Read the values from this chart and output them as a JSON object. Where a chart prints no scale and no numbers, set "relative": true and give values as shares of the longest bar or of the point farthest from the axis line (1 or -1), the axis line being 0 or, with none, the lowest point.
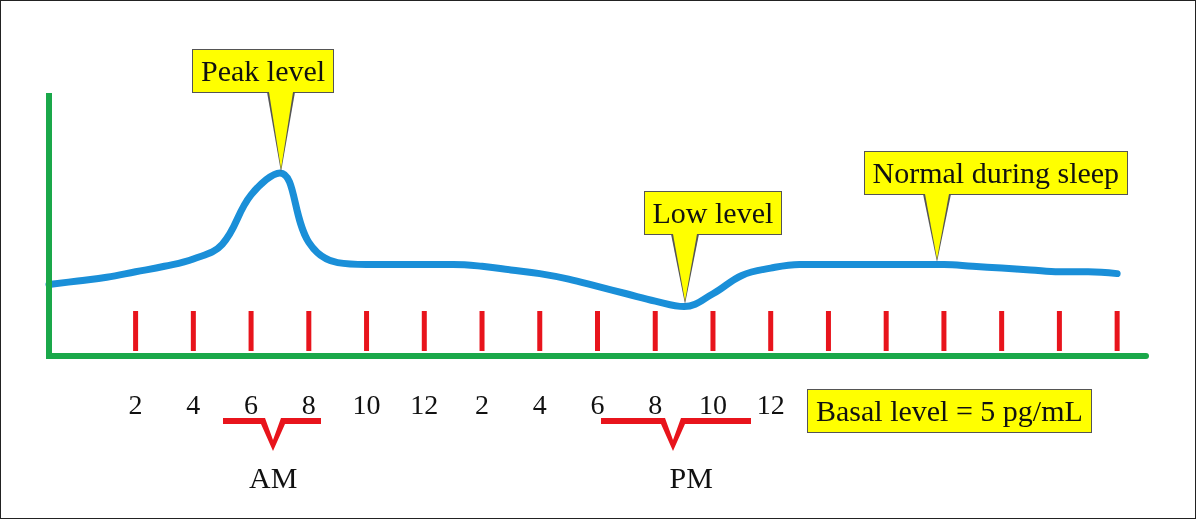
{
  "chart_data": {
    "type": "line",
    "relative": true,
    "grid": false,
    "marker": "none",
    "line_style": "solid",
    "categories": [
      null,
      null,
      null,
      "2",
      null,
      "4",
      null,
      "6",
      null,
      "8",
      null,
      "10",
      null,
      "12",
      null,
      "2",
      null,
      "4",
      null,
      "6",
      null,
      "8",
      null,
      "10",
      null,
      "12",
      null,
      null,
      null,
      null,
      null,
      null,
      null,
      null,
      null,
      null,
      null,
      null,
      null
    ],
    "series": [
      {
        "color": "#1a8fd8",
        "values": [
          0.39,
          0.41,
          0.43,
          0.46,
          0.49,
          0.53,
          0.61,
          0.88,
          1.0,
          0.62,
          0.51,
          0.5,
          0.5,
          0.5,
          0.5,
          0.49,
          0.47,
          0.45,
          0.42,
          0.38,
          0.34,
          0.3,
          0.27,
          0.34,
          0.44,
          0.48,
          0.5,
          0.5,
          0.5,
          0.5,
          0.5,
          0.5,
          0.49,
          0.48,
          0.47,
          0.46,
          0.46,
          0.45,
          null
        ]
      }
    ],
    "annotations": [
      "Peak level",
      "Low level",
      "Normal during sleep",
      "Basal level = 5 pg/mL",
      "AM",
      "PM"
    ]
  }
}
